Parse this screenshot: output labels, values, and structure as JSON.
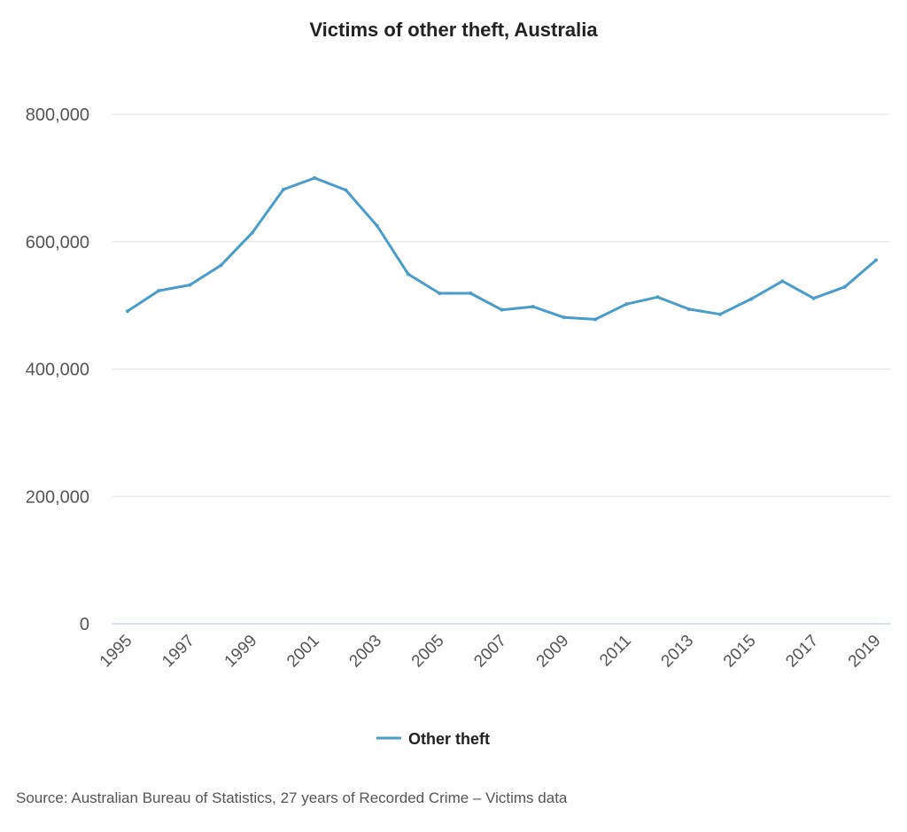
{
  "chart_data": {
    "type": "line",
    "title": "Victims of other theft, Australia",
    "x": [
      1995,
      1996,
      1997,
      1998,
      1999,
      2000,
      2001,
      2002,
      2003,
      2004,
      2005,
      2006,
      2007,
      2008,
      2009,
      2010,
      2011,
      2012,
      2013,
      2014,
      2015,
      2016,
      2017,
      2018,
      2019
    ],
    "x_tick_labels": [
      "1995",
      "1997",
      "1999",
      "2001",
      "2003",
      "2005",
      "2007",
      "2009",
      "2011",
      "2013",
      "2015",
      "2017",
      "2019"
    ],
    "y_tick_labels": [
      "0",
      "200,000",
      "400,000",
      "600,000",
      "800,000"
    ],
    "ylim": [
      0,
      800000
    ],
    "grid": true,
    "legend_position": "bottom",
    "series": [
      {
        "name": "Other theft",
        "color": "#4a9cc9",
        "values": [
          491000,
          523000,
          532000,
          563000,
          614000,
          682000,
          700000,
          681000,
          625000,
          549000,
          519000,
          519000,
          493000,
          498000,
          481000,
          478000,
          502000,
          513000,
          494000,
          486000,
          510000,
          538000,
          511000,
          529000,
          571000
        ]
      }
    ],
    "source": "Source: Australian Bureau of Statistics, 27 years of Recorded Crime – Victims data"
  }
}
